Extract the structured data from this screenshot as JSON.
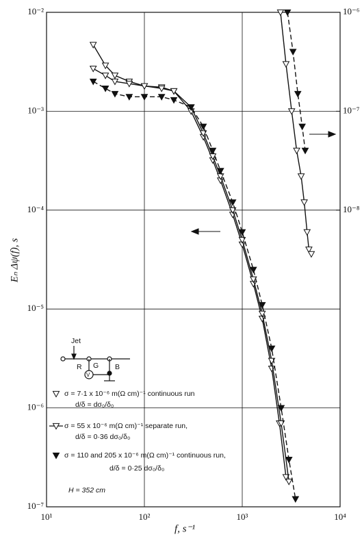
{
  "chart_data": {
    "type": "line",
    "x_label": "f,    s⁻¹",
    "y_label": "Eₙ Δψ(f),     s",
    "log_x": true,
    "log_y": true,
    "grid": true,
    "xlim": [
      10,
      10000
    ],
    "xticks": [
      {
        "value": 10,
        "label": "10¹"
      },
      {
        "value": 100,
        "label": "10²"
      },
      {
        "value": 1000,
        "label": "10³"
      },
      {
        "value": 10000,
        "label": "10⁴"
      }
    ],
    "ylim": [
      1e-07,
      0.01
    ],
    "yticks": [
      {
        "value": 0.01,
        "label": "10⁻²"
      },
      {
        "value": 0.001,
        "label": "10⁻³"
      },
      {
        "value": 0.0001,
        "label": "10⁻⁴"
      },
      {
        "value": 1e-05,
        "label": "10⁻⁵"
      },
      {
        "value": 1e-06,
        "label": "10⁻⁶"
      },
      {
        "value": 1e-07,
        "label": "10⁻⁷"
      }
    ],
    "y2lim": [
      1e-11,
      1e-06
    ],
    "y2ticks": [
      {
        "value": 1e-06,
        "label": "10⁻⁶"
      },
      {
        "value": 1e-07,
        "label": "10⁻⁷"
      },
      {
        "value": 1e-08,
        "label": "10⁻⁸"
      }
    ],
    "series": [
      {
        "name": "σ = 7·1 x 10⁻⁶ m(Ω cm)⁻¹ continuous run",
        "color": "#111",
        "marker": "open",
        "line": "solid",
        "x": [
          30,
          40,
          50,
          70,
          100,
          150,
          200,
          300,
          400,
          500,
          600,
          800,
          1000,
          1300,
          1600,
          2000,
          2400,
          2800
        ],
        "values": [
          0.0047,
          0.0029,
          0.0023,
          0.002,
          0.0018,
          0.00175,
          0.0016,
          0.001,
          0.00055,
          0.00032,
          0.0002,
          9e-05,
          4.5e-05,
          1.8e-05,
          8e-06,
          2.5e-06,
          7e-07,
          2e-07
        ]
      },
      {
        "name": "σ = 55 x 10⁻⁶ m(Ω cm)⁻¹ separate run,",
        "color": "#111",
        "marker": "open",
        "line": "solid",
        "x": [
          30,
          40,
          50,
          70,
          100,
          150,
          200,
          300,
          400,
          500,
          600,
          800,
          1000,
          1300,
          1600,
          2000,
          2500,
          3000
        ],
        "values": [
          0.0027,
          0.0023,
          0.002,
          0.0019,
          0.0018,
          0.0017,
          0.0016,
          0.0011,
          0.0006,
          0.00035,
          0.00022,
          0.0001,
          5e-05,
          2e-05,
          9e-06,
          3e-06,
          7e-07,
          1.8e-07
        ]
      },
      {
        "name": "σ = 110 and 205 x 10⁻⁶ m(Ω cm)⁻¹ continuous run,",
        "color": "#111",
        "marker": "filled",
        "line": "dashed",
        "x": [
          30,
          40,
          50,
          70,
          100,
          150,
          200,
          300,
          400,
          500,
          600,
          800,
          1000,
          1300,
          1600,
          2000,
          2500,
          3000,
          3500
        ],
        "values": [
          0.002,
          0.0017,
          0.0015,
          0.0014,
          0.0014,
          0.0014,
          0.0013,
          0.0011,
          0.0007,
          0.0004,
          0.00025,
          0.00012,
          6e-05,
          2.5e-05,
          1.1e-05,
          4e-06,
          1e-06,
          3e-07,
          1.2e-07
        ]
      },
      {
        "color": "#111",
        "marker": "open",
        "line": "solid",
        "axis": "y2",
        "x": [
          2460,
          2800,
          3200,
          3600,
          4000,
          4300,
          4600,
          4800,
          5080
        ],
        "values": [
          1e-06,
          3e-07,
          1e-07,
          4e-08,
          2.2e-08,
          1.2e-08,
          6e-09,
          4e-09,
          3.6e-09
        ]
      },
      {
        "color": "#111",
        "marker": "filled",
        "line": "dashed",
        "axis": "y2",
        "x": [
          2900,
          3300,
          3700,
          4100,
          4400
        ],
        "values": [
          1e-06,
          4e-07,
          1.5e-07,
          7e-08,
          4e-08
        ]
      }
    ],
    "legend_notes": [
      "d/δ = dσ₀/δ₀",
      "d/δ = 0·36 dσ₀/δ₀",
      "d/δ = 0·25 dσ₀/δ₀"
    ],
    "annotation": "H = 352 cm",
    "diagram_labels": [
      "Jet",
      "R",
      "G",
      "V",
      "B"
    ]
  }
}
